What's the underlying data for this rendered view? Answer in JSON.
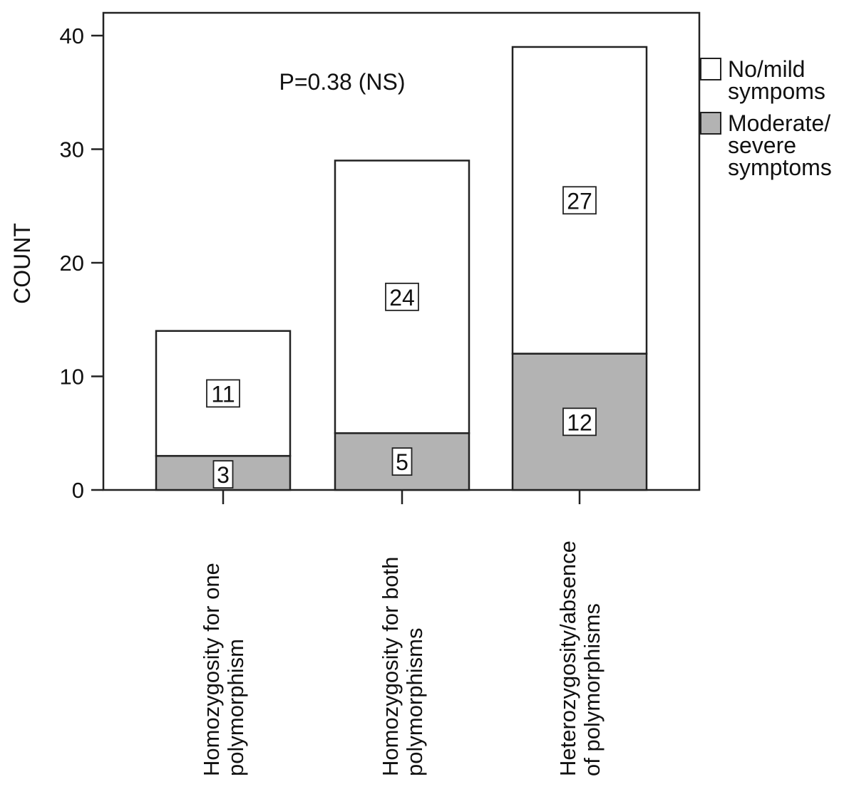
{
  "chart_data": {
    "type": "bar",
    "stacked": true,
    "categories": [
      [
        "Homozygosity for one",
        "polymorphism"
      ],
      [
        "Homozygosity for both",
        "polymorphisms"
      ],
      [
        "Heterozygosity/absence",
        "of polymorphisms"
      ]
    ],
    "series": [
      {
        "name": [
          "Moderate/",
          "severe",
          "symptoms"
        ],
        "values": [
          3,
          5,
          12
        ],
        "color": "#b3b3b3"
      },
      {
        "name": [
          "No/mild",
          "sympoms"
        ],
        "values": [
          11,
          24,
          27
        ],
        "color": "#ffffff"
      }
    ],
    "ylabel": "COUNT",
    "ylim": [
      0,
      42
    ],
    "yticks": [
      0,
      10,
      20,
      30,
      40
    ],
    "annotation": "P=0.38 (NS)",
    "legend_position": "right",
    "grid": false
  }
}
